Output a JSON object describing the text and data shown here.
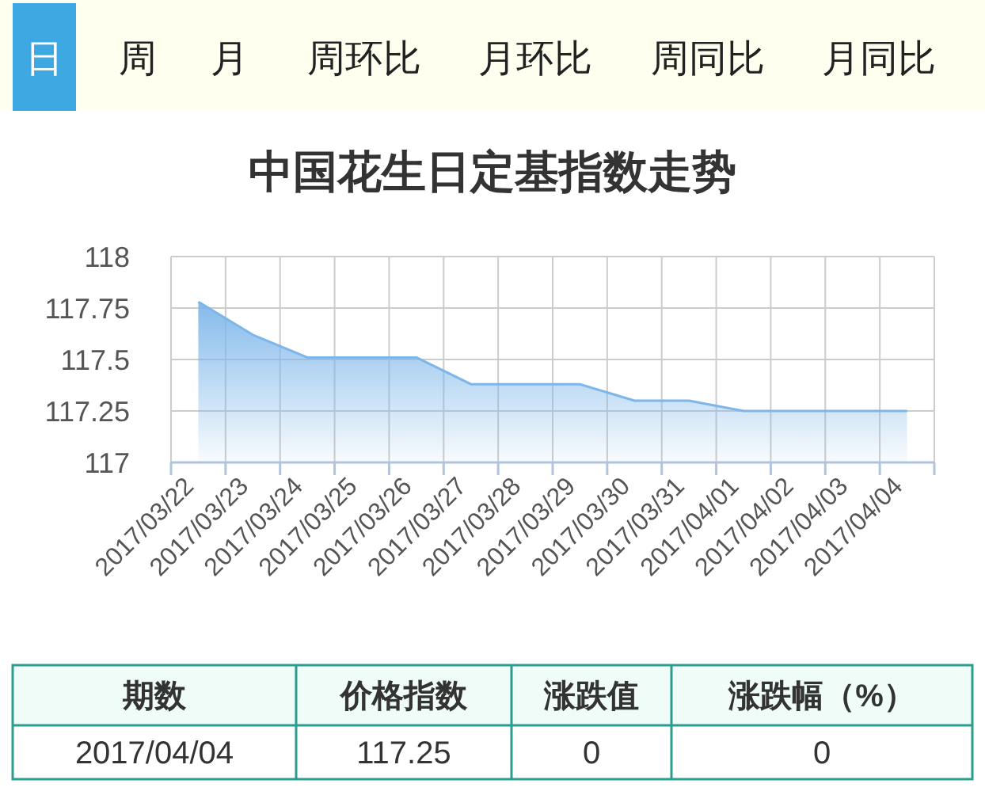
{
  "chart_data": {
    "type": "area",
    "title": "中国花生日定基指数走势",
    "categories": [
      "2017/03/22",
      "2017/03/23",
      "2017/03/24",
      "2017/03/25",
      "2017/03/26",
      "2017/03/27",
      "2017/03/28",
      "2017/03/29",
      "2017/03/30",
      "2017/03/31",
      "2017/04/01",
      "2017/04/02",
      "2017/04/03",
      "2017/04/04"
    ],
    "series": [
      {
        "color": "#7eb6ea",
        "values": [
          117.78,
          117.62,
          117.51,
          117.51,
          117.51,
          117.38,
          117.38,
          117.38,
          117.3,
          117.3,
          117.25,
          117.25,
          117.25,
          117.25
        ]
      }
    ],
    "ylim": [
      117,
      118
    ],
    "yticks": [
      117,
      117.25,
      117.5,
      117.75,
      118
    ],
    "grid": true,
    "annotations": [
      "日",
      "周",
      "月",
      "周环比",
      "月环比",
      "周同比",
      "月同比",
      "期数",
      "价格指数",
      "涨跌值",
      "涨跌幅（%）",
      "2017/04/04",
      "117.25",
      "0",
      "0"
    ]
  }
}
